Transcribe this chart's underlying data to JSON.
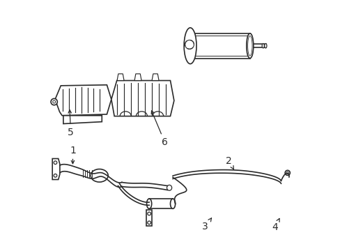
{
  "background_color": "#ffffff",
  "line_color": "#2a2a2a",
  "line_width": 1.2,
  "label_fontsize": 10
}
